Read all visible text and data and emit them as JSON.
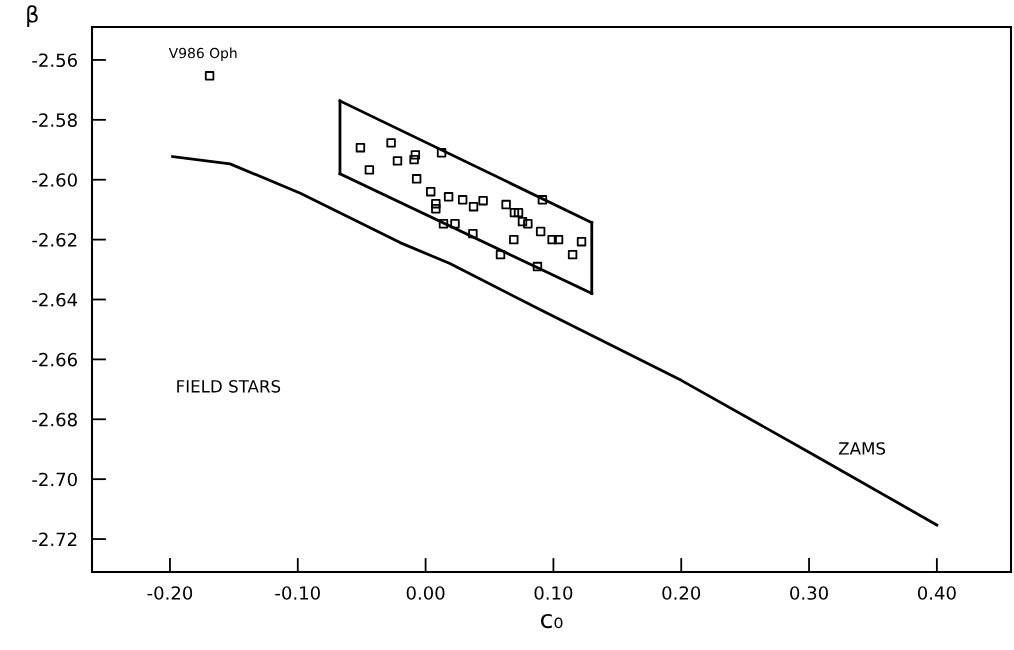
{
  "chart_data": {
    "type": "scatter",
    "xlabel": "c₀",
    "ylabel": "β",
    "xlim": [
      -0.261,
      0.458
    ],
    "ylim": [
      -2.731,
      -2.549
    ],
    "xticks": [
      {
        "value": -0.2,
        "label": "-0.20"
      },
      {
        "value": -0.1,
        "label": "-0.10"
      },
      {
        "value": 0.0,
        "label": "0.00"
      },
      {
        "value": 0.1,
        "label": "0.10"
      },
      {
        "value": 0.2,
        "label": "0.20"
      },
      {
        "value": 0.3,
        "label": "0.30"
      },
      {
        "value": 0.4,
        "label": "0.40"
      }
    ],
    "yticks": [
      {
        "value": -2.56,
        "label": "-2.56"
      },
      {
        "value": -2.58,
        "label": "-2.58"
      },
      {
        "value": -2.6,
        "label": "-2.60"
      },
      {
        "value": -2.62,
        "label": "-2.62"
      },
      {
        "value": -2.64,
        "label": "-2.64"
      },
      {
        "value": -2.66,
        "label": "-2.66"
      },
      {
        "value": -2.68,
        "label": "-2.68"
      },
      {
        "value": -2.7,
        "label": "-2.70"
      },
      {
        "value": -2.72,
        "label": "-2.72"
      }
    ],
    "grid": false,
    "marker": "square",
    "series": [
      {
        "color": "#000000",
        "x": [
          -0.051,
          -0.027,
          -0.044,
          -0.022,
          -0.008,
          -0.009,
          0.0125,
          -0.007,
          0.004,
          0.008,
          0.008,
          0.018,
          0.029,
          0.0375,
          0.045,
          0.014,
          0.023,
          0.037,
          0.063,
          0.0695,
          0.0727,
          0.0758,
          0.08,
          0.0914,
          0.069,
          0.0586,
          0.09,
          0.099,
          0.104,
          0.0875,
          0.115,
          0.122
        ],
        "values": [
          -2.5893,
          -2.5877,
          -2.5967,
          -2.5937,
          -2.5917,
          -2.5933,
          -2.591,
          -2.5997,
          -2.604,
          -2.608,
          -2.6097,
          -2.6057,
          -2.6067,
          -2.609,
          -2.607,
          -2.6147,
          -2.6147,
          -2.618,
          -2.6083,
          -2.611,
          -2.611,
          -2.614,
          -2.6147,
          -2.6067,
          -2.62,
          -2.625,
          -2.6173,
          -2.62,
          -2.62,
          -2.629,
          -2.625,
          -2.6207
        ]
      },
      {
        "color": "#000000",
        "x": [
          -0.169
        ],
        "values": [
          -2.5653
        ]
      },
      {
        "type": "line",
        "color": "#000000",
        "marker": "none",
        "x": [
          -0.067,
          -0.067
        ],
        "values": [
          -2.5737,
          -2.598
        ]
      },
      {
        "type": "line",
        "color": "#000000",
        "marker": "none",
        "x": [
          0.13,
          0.13
        ],
        "values": [
          -2.6143,
          -2.638
        ]
      },
      {
        "type": "line",
        "color": "#000000",
        "marker": "none",
        "x": [
          -0.067,
          0.13
        ],
        "values": [
          -2.5737,
          -2.6143
        ]
      },
      {
        "type": "line",
        "color": "#000000",
        "marker": "none",
        "x": [
          -0.067,
          0.13
        ],
        "values": [
          -2.598,
          -2.638
        ]
      },
      {
        "type": "line",
        "color": "#000000",
        "marker": "none",
        "x": [
          -0.198,
          -0.153,
          -0.098,
          -0.02,
          0.019,
          0.091,
          0.2,
          0.3,
          0.4
        ],
        "values": [
          -2.5923,
          -2.5947,
          -2.6045,
          -2.621,
          -2.628,
          -2.6437,
          -2.667,
          -2.691,
          -2.7153
        ]
      }
    ],
    "annotations": [
      "V986 Oph",
      "FIELD STARS",
      "ZAMS"
    ]
  }
}
